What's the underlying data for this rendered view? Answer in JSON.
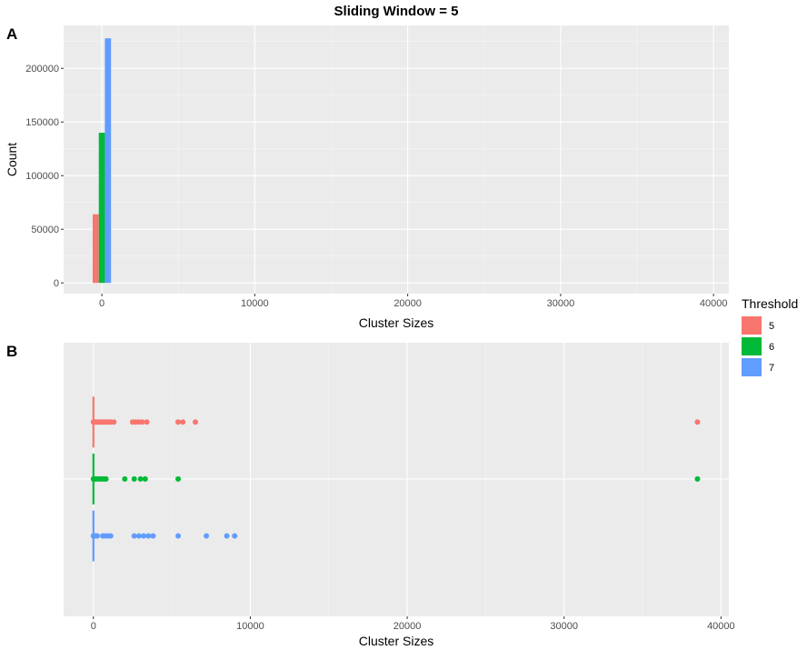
{
  "title": "Sliding Window = 5",
  "panel_labels": [
    "A",
    "B"
  ],
  "legend": {
    "title": "Threshold",
    "position": "right",
    "items": [
      {
        "label": "5",
        "color": "#F8766D"
      },
      {
        "label": "6",
        "color": "#00BA38"
      },
      {
        "label": "7",
        "color": "#619CFF"
      }
    ]
  },
  "chart_data": [
    {
      "type": "bar",
      "panel": "A",
      "title": "Sliding Window = 5",
      "xlabel": "Cluster Sizes",
      "ylabel": "Count",
      "xlim": [
        -2500,
        41000
      ],
      "ylim": [
        -10000,
        240000
      ],
      "xticks": [
        0,
        10000,
        20000,
        30000,
        40000
      ],
      "yticks": [
        0,
        50000,
        100000,
        150000,
        200000
      ],
      "xtick_labels": [
        "0",
        "10000",
        "20000",
        "30000",
        "40000"
      ],
      "ytick_labels": [
        "0",
        "50000",
        "100000",
        "150000",
        "200000"
      ],
      "grid": true,
      "bars": [
        {
          "series": "5",
          "x_start": -600,
          "x_end": -200,
          "value": 64000
        },
        {
          "series": "6",
          "x_start": -200,
          "x_end": 200,
          "value": 140000
        },
        {
          "series": "7",
          "x_start": 200,
          "x_end": 600,
          "value": 228000
        }
      ]
    },
    {
      "type": "scatter",
      "panel": "B",
      "xlabel": "Cluster Sizes",
      "ylabel": "",
      "xlim": [
        -1900,
        40500
      ],
      "xticks": [
        0,
        10000,
        20000,
        30000,
        40000
      ],
      "xtick_labels": [
        "0",
        "10000",
        "20000",
        "30000",
        "40000"
      ],
      "grid": true,
      "series": [
        {
          "name": "5",
          "x": [
            1,
            20,
            60,
            120,
            200,
            300,
            400,
            500,
            600,
            700,
            800,
            900,
            1000,
            1100,
            1300,
            2500,
            2700,
            2900,
            3100,
            3400,
            5400,
            5700,
            6500,
            38500
          ]
        },
        {
          "name": "6",
          "x": [
            1,
            20,
            60,
            150,
            250,
            400,
            550,
            700,
            800,
            2000,
            2600,
            3000,
            3300,
            5400,
            38500
          ]
        },
        {
          "name": "7",
          "x": [
            1,
            20,
            60,
            150,
            250,
            600,
            750,
            900,
            1100,
            2600,
            2900,
            3200,
            3500,
            3800,
            5400,
            7200,
            8500,
            9000
          ]
        }
      ]
    }
  ]
}
